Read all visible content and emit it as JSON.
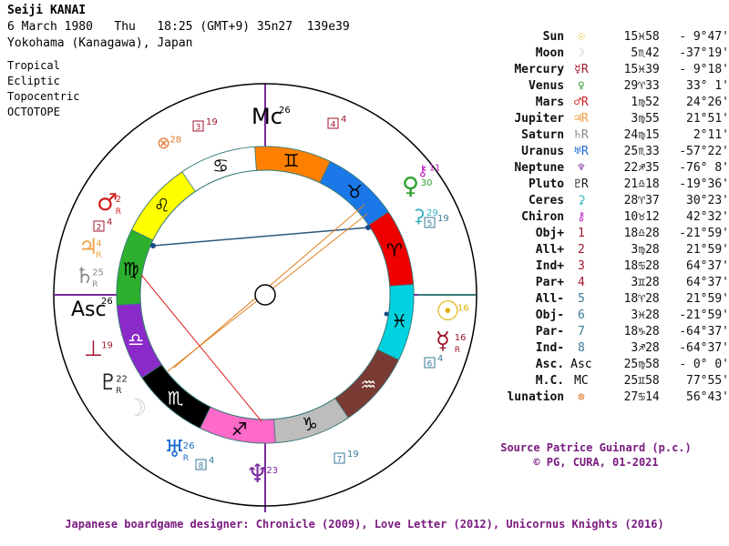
{
  "header": {
    "name": "Seiji KANAI",
    "line2": "6 March 1980   Thu   18:25 (GMT+9) 35n27  139e39",
    "line3": "Yokohama (Kanagawa), Japan"
  },
  "options": [
    "Tropical",
    "Ecliptic",
    "Topocentric",
    "OCTOTOPE"
  ],
  "planets": [
    {
      "name": "Sun",
      "glyph": "☉",
      "color": "#e0b000",
      "pos": "15♓58",
      "lat": "- 9°47'"
    },
    {
      "name": "Moon",
      "glyph": "☽",
      "color": "#c8c8c8",
      "pos": " 5♏42",
      "lat": "-37°19'"
    },
    {
      "name": "Mercury",
      "glyph": "☿R",
      "color": "#a0162e",
      "pos": "15♓39",
      "lat": "- 9°18'"
    },
    {
      "name": "Venus",
      "glyph": "♀",
      "color": "#2aa02a",
      "pos": "29♈33",
      "lat": "33° 1'"
    },
    {
      "name": "Mars",
      "glyph": "♂R",
      "color": "#d02020",
      "pos": " 1♍52",
      "lat": "24°26'"
    },
    {
      "name": "Jupiter",
      "glyph": "♃R",
      "color": "#f0a040",
      "pos": " 3♍55",
      "lat": "21°51'"
    },
    {
      "name": "Saturn",
      "glyph": "♄R",
      "color": "#888888",
      "pos": "24♍15",
      "lat": " 2°11'"
    },
    {
      "name": "Uranus",
      "glyph": "♅R",
      "color": "#1a6ad0",
      "pos": "25♏33",
      "lat": "-57°22'"
    },
    {
      "name": "Neptune",
      "glyph": "♆",
      "color": "#7a2aa0",
      "pos": "22♐35",
      "lat": "-76° 8'"
    },
    {
      "name": "Pluto",
      "glyph": "♇R",
      "color": "#222222",
      "pos": "21♎18",
      "lat": "-19°36'"
    },
    {
      "name": "Ceres",
      "glyph": "⚳",
      "color": "#30b0c0",
      "pos": "28♈37",
      "lat": "30°23'"
    },
    {
      "name": "Chiron",
      "glyph": "⚷",
      "color": "#c020c0",
      "pos": "10♉12",
      "lat": "42°32'"
    },
    {
      "name": "Obj+",
      "glyph": "1",
      "color": "#a0162e",
      "pos": "18♎28",
      "lat": "-21°59'"
    },
    {
      "name": "All+",
      "glyph": "2",
      "color": "#a0162e",
      "pos": " 3♍28",
      "lat": "21°59'"
    },
    {
      "name": "Ind+",
      "glyph": "3",
      "color": "#a0162e",
      "pos": "18♋28",
      "lat": "64°37'"
    },
    {
      "name": "Par+",
      "glyph": "4",
      "color": "#a0162e",
      "pos": " 3♊28",
      "lat": "64°37'"
    },
    {
      "name": "All-",
      "glyph": "5",
      "color": "#3a7a9a",
      "pos": "18♈28",
      "lat": "21°59'"
    },
    {
      "name": "Obj-",
      "glyph": "6",
      "color": "#3a7a9a",
      "pos": " 3♓28",
      "lat": "-21°59'"
    },
    {
      "name": "Par-",
      "glyph": "7",
      "color": "#3a7a9a",
      "pos": "18♑28",
      "lat": "-64°37'"
    },
    {
      "name": "Ind-",
      "glyph": "8",
      "color": "#3a7a9a",
      "pos": " 3♐28",
      "lat": "-64°37'"
    },
    {
      "name": "Asc.",
      "glyph": "Asc",
      "color": "#000000",
      "pos": "25♍58",
      "lat": "- 0° 0'"
    },
    {
      "name": "M.C.",
      "glyph": "MC",
      "color": "#000000",
      "pos": "25♊58",
      "lat": "77°55'"
    },
    {
      "name": "lunation",
      "glyph": "⊗",
      "color": "#e07a30",
      "pos": "27♋14",
      "lat": "56°43'"
    }
  ],
  "wheel": {
    "asc_label": "Asc",
    "asc_sup": "26",
    "mc_label": "Mc",
    "mc_sup": "26",
    "signs": [
      {
        "glyph": "♈",
        "color": "#ee0000"
      },
      {
        "glyph": "♉",
        "color": "#1a78e8"
      },
      {
        "glyph": "♊",
        "color": "#ff8000"
      },
      {
        "glyph": "♋",
        "color": "#ffffff"
      },
      {
        "glyph": "♌",
        "color": "#ffff00"
      },
      {
        "glyph": "♍",
        "color": "#2db02d"
      },
      {
        "glyph": "♎",
        "color": "#8a2ac8"
      },
      {
        "glyph": "♏",
        "color": "#000000"
      },
      {
        "glyph": "♐",
        "color": "#ff69c8"
      },
      {
        "glyph": "♑",
        "color": "#bdbdbd"
      },
      {
        "glyph": "♒",
        "color": "#7a3a34"
      },
      {
        "glyph": "♓",
        "color": "#00d2e0"
      }
    ],
    "bodies": [
      {
        "glyph": "☉",
        "deg": "16",
        "color": "#e0b000"
      },
      {
        "glyph": "☿",
        "deg": "16",
        "r": "R",
        "color": "#a0162e"
      },
      {
        "glyph": "♀",
        "deg": "30",
        "color": "#2aa02a"
      },
      {
        "glyph": "⚳",
        "deg": "29",
        "color": "#30b0c0"
      },
      {
        "glyph": "⚷",
        "deg": "11",
        "color": "#c020c0"
      },
      {
        "glyph": "♂",
        "deg": "2",
        "r": "R",
        "color": "#d02020"
      },
      {
        "glyph": "♃",
        "deg": "4",
        "r": "R",
        "color": "#f0a040"
      },
      {
        "glyph": "♄",
        "deg": "25",
        "r": "R",
        "color": "#888888"
      },
      {
        "glyph": "♇",
        "deg": "22",
        "r": "R",
        "color": "#222222"
      },
      {
        "glyph": "☽",
        "deg": "",
        "color": "#d0d0d0"
      },
      {
        "glyph": "♅",
        "deg": "26",
        "r": "R",
        "color": "#1a6ad0"
      },
      {
        "glyph": "♆",
        "deg": "23",
        "color": "#7a2aa0"
      },
      {
        "glyph": "⊗",
        "deg": "28",
        "color": "#e07a30"
      },
      {
        "glyph": "⊥",
        "deg": "19",
        "color": "#a0162e"
      }
    ],
    "boxes": [
      {
        "num": "3",
        "deg": "19",
        "color": "#a0162e"
      },
      {
        "num": "4",
        "deg": "4",
        "color": "#a0162e"
      },
      {
        "num": "5",
        "deg": "19",
        "color": "#3a7a9a"
      },
      {
        "num": "2",
        "deg": "4",
        "color": "#a0162e"
      },
      {
        "num": "6",
        "deg": "4",
        "color": "#3a7a9a"
      },
      {
        "num": "7",
        "deg": "19",
        "color": "#3a7a9a"
      },
      {
        "num": "8",
        "deg": "4",
        "color": "#3a7a9a"
      }
    ]
  },
  "source_line1": "Source Patrice Guinard (p.c.)",
  "source_line2": "© PG, CURA, 01-2021",
  "footer": "Japanese boardgame designer: Chronicle (2009), Love Letter (2012), Unicornus Knights (2016)"
}
